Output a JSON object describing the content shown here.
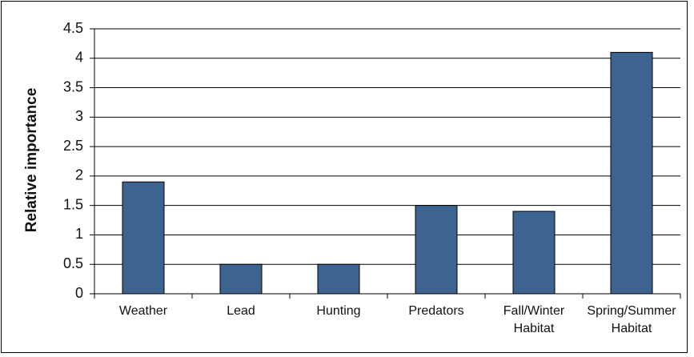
{
  "chart_data": {
    "type": "bar",
    "y_label": "Relative importance",
    "categories": [
      "Weather",
      "Lead",
      "Hunting",
      "Predators",
      "Fall/Winter Habitat",
      "Spring/Summer Habitat"
    ],
    "values": [
      1.9,
      0.5,
      0.5,
      1.5,
      1.4,
      4.1
    ],
    "color": "#3d6390",
    "ylim": [
      0,
      4.5
    ],
    "yticks": [
      0,
      0.5,
      1,
      1.5,
      2,
      2.5,
      3,
      3.5,
      4,
      4.5
    ],
    "grid": true
  }
}
